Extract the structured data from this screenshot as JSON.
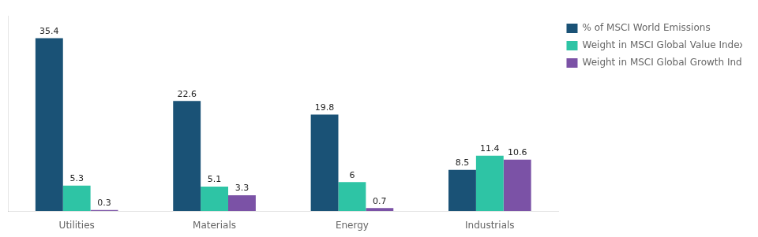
{
  "chart_data": {
    "type": "bar",
    "categories": [
      "Utilities",
      "Materials",
      "Energy",
      "Industrials"
    ],
    "series": [
      {
        "name": "% of MSCI World Emissions",
        "values": [
          35.4,
          22.6,
          19.8,
          8.5
        ],
        "color": "#1a5276"
      },
      {
        "name": "Weight in MSCI Global Value Index",
        "values": [
          5.3,
          5.1,
          6.0,
          11.4
        ],
        "color": "#2ec4a5"
      },
      {
        "name": "Weight in MSCI Global Growth Index",
        "values": [
          0.3,
          3.3,
          0.7,
          10.6
        ],
        "color": "#7b52a6"
      }
    ],
    "ylim": [
      0,
      40
    ],
    "data_labels": true,
    "tick_labels": "x",
    "grid": false,
    "legend": "right"
  }
}
